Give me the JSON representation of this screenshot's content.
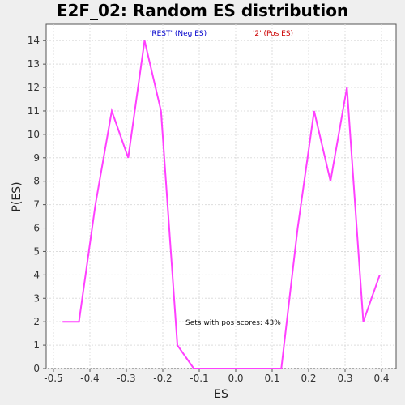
{
  "chart_data": {
    "type": "line",
    "title": "E2F_02: Random ES distribution",
    "xlabel": "ES",
    "ylabel": "P(ES)",
    "xlim": [
      -0.52,
      0.44
    ],
    "ylim": [
      0,
      14.7
    ],
    "xticks": [
      -0.5,
      -0.4,
      -0.3,
      -0.2,
      -0.1,
      0.0,
      0.1,
      0.2,
      0.3,
      0.4
    ],
    "xtick_labels": [
      "-0.5",
      "-0.4",
      "-0.3",
      "-0.2",
      "-0.1",
      "0.0",
      "0.1",
      "0.2",
      "0.3",
      "0.4"
    ],
    "yticks": [
      0,
      1,
      2,
      3,
      4,
      5,
      6,
      7,
      8,
      9,
      10,
      11,
      12,
      13,
      14
    ],
    "ytick_labels": [
      "0",
      "1",
      "2",
      "3",
      "4",
      "5",
      "6",
      "7",
      "8",
      "9",
      "10",
      "11",
      "12",
      "13",
      "14"
    ],
    "grid": true,
    "series": [
      {
        "color": "#ff40ff",
        "x": [
          -0.475,
          -0.43,
          -0.385,
          -0.34,
          -0.295,
          -0.25,
          -0.205,
          -0.16,
          -0.115,
          -0.07,
          -0.025,
          0.02,
          0.065,
          0.11,
          0.125,
          0.17,
          0.215,
          0.26,
          0.305,
          0.35,
          0.395
        ],
        "y": [
          2,
          2,
          7,
          11,
          9,
          14,
          11,
          1,
          0,
          0,
          0,
          0,
          0,
          0,
          0,
          6,
          11,
          8,
          12,
          2,
          4
        ]
      }
    ],
    "legend": [
      {
        "label": "'REST' (Neg ES)",
        "color": "#0000cc"
      },
      {
        "label": "'2' (Pos ES)",
        "color": "#cc0000"
      }
    ],
    "legend_placement": "top-center",
    "annotation": "Sets with pos scores: 43%"
  }
}
